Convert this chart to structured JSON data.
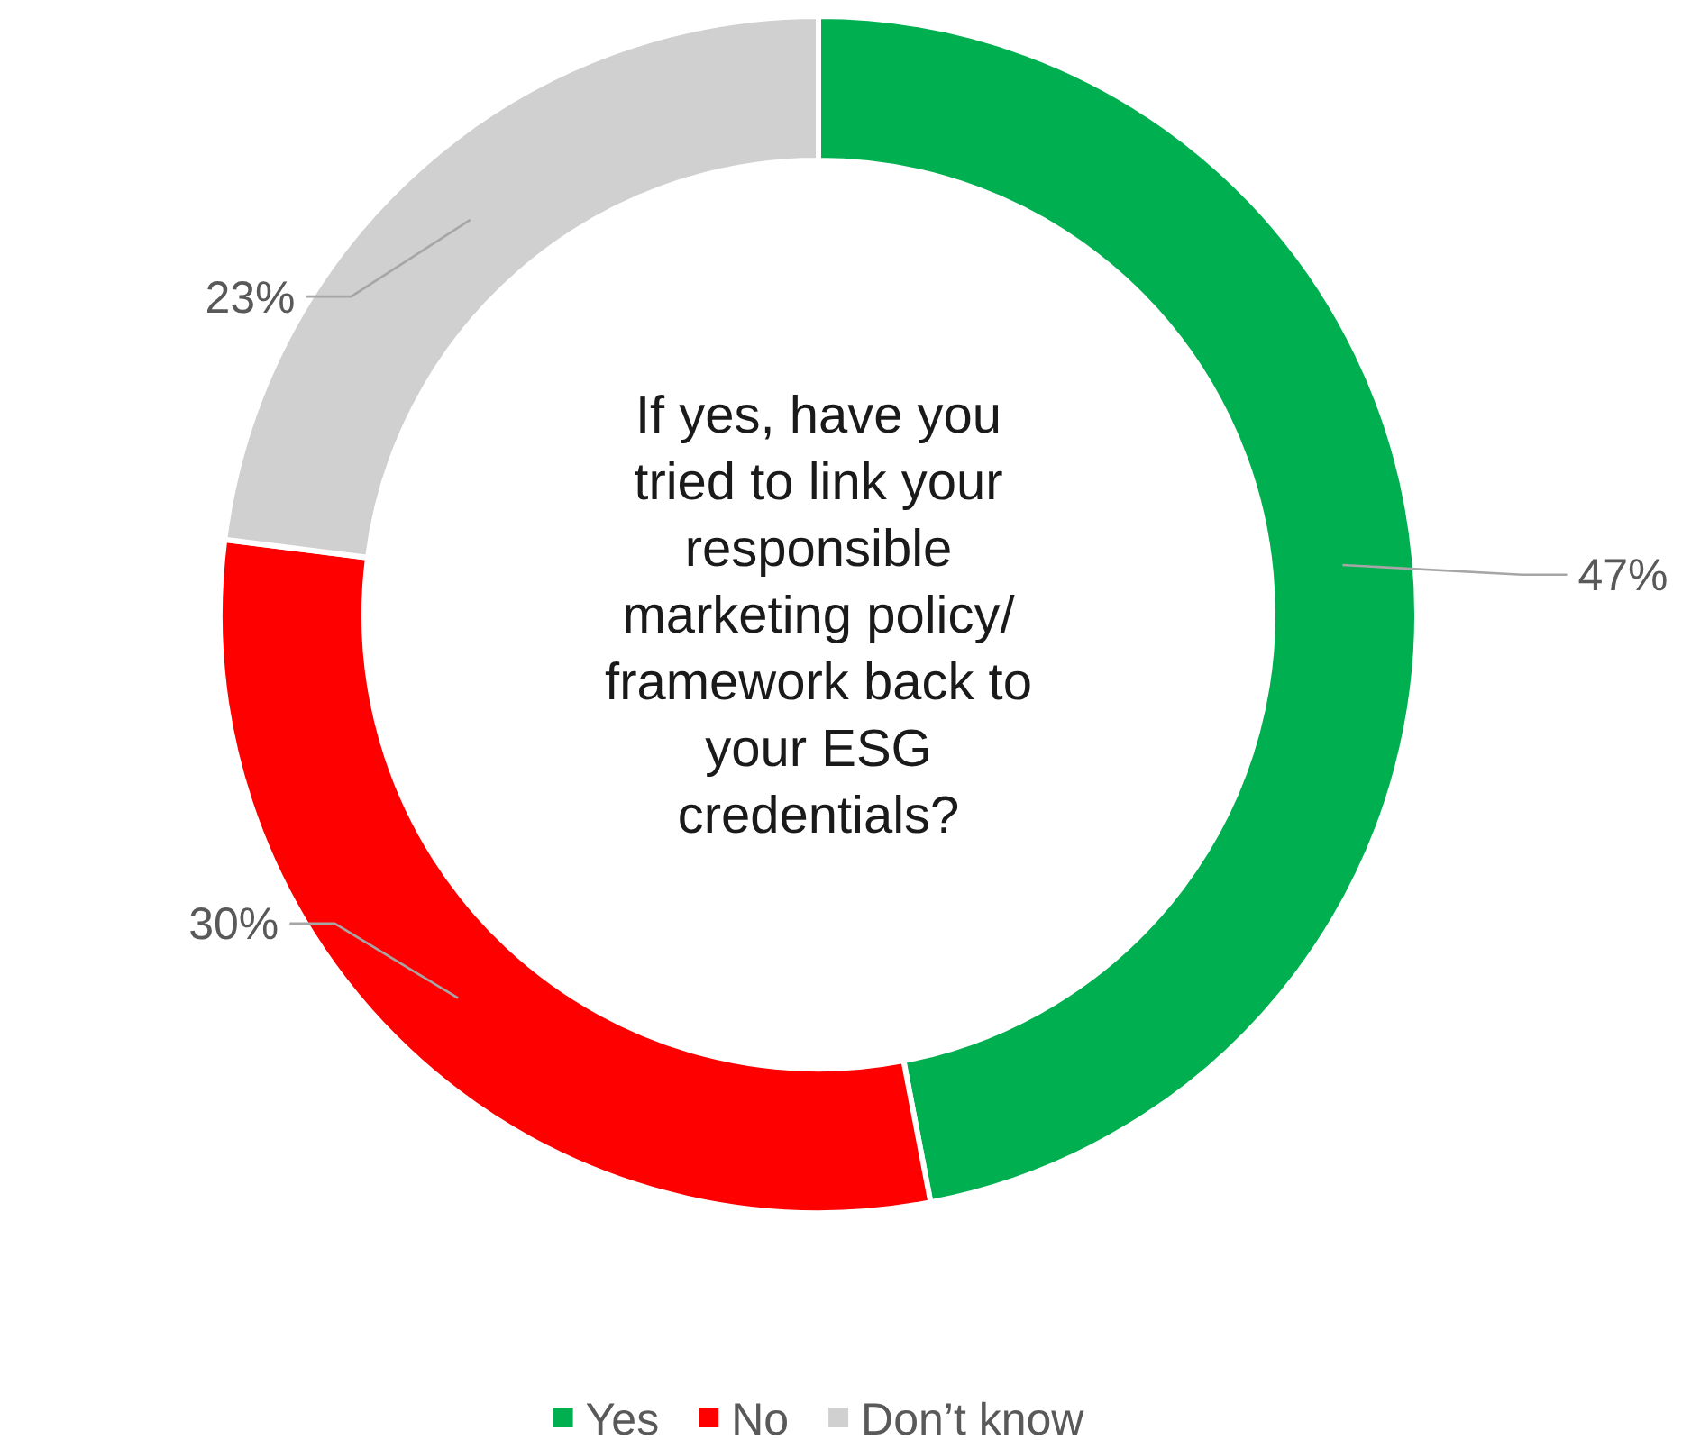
{
  "chart_data": {
    "type": "donut",
    "title": "If yes, have you tried to link your responsible marketing policy/ framework back to your ESG credentials?",
    "categories": [
      "Yes",
      "No",
      "Don’t know"
    ],
    "values": [
      47,
      30,
      23
    ],
    "value_labels": [
      "47%",
      "30%",
      "23%"
    ],
    "colors": [
      "#00b050",
      "#ff0000",
      "#d0d0d0"
    ],
    "legend": "bottom"
  }
}
